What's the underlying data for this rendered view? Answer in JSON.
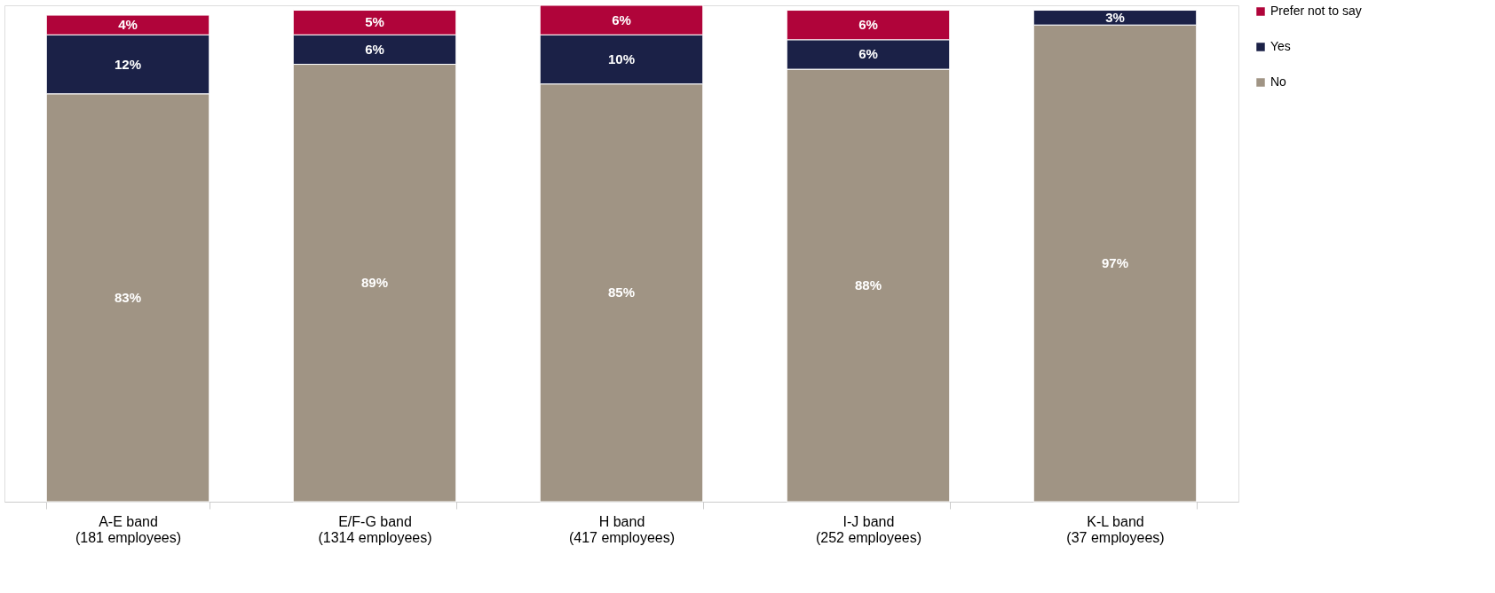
{
  "chart_data": {
    "type": "bar",
    "stacked": true,
    "legend": "right",
    "grid": false,
    "categories": [
      "A-E band\n(181 employees)",
      "E/F-G band\n(1314 employees)",
      "H band\n(417 employees)",
      "I-J band\n(252 employees)",
      "K-L band\n(37 employees)"
    ],
    "series": [
      {
        "name": "No",
        "color": "#a09484",
        "values": [
          83,
          89,
          85,
          88,
          97
        ],
        "value_labels": [
          "83%",
          "89%",
          "85%",
          "88%",
          "97%"
        ]
      },
      {
        "name": "Yes",
        "color": "#1b2147",
        "values": [
          12,
          6,
          10,
          6,
          3
        ],
        "value_labels": [
          "12%",
          "6%",
          "10%",
          "6%",
          "3%"
        ]
      },
      {
        "name": "Prefer not to say",
        "color": "#b0043a",
        "values": [
          4,
          5,
          6,
          6,
          null
        ],
        "value_labels": [
          "4%",
          "5%",
          "6%",
          "6%",
          null
        ]
      }
    ]
  }
}
